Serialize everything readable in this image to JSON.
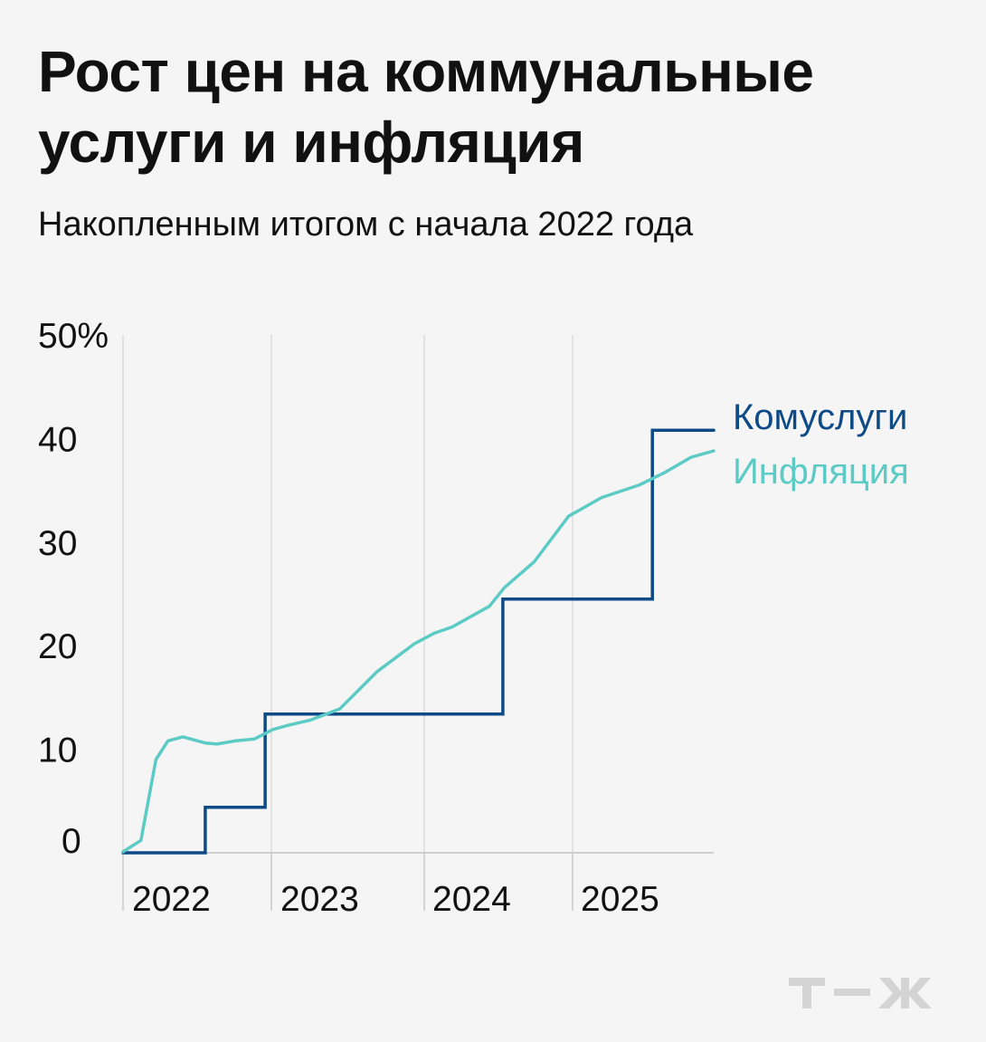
{
  "header": {
    "title": "Рост цен на коммунальные услуги и инфляция",
    "subtitle": "Накопленным итогом с начала 2022 года"
  },
  "brand": {
    "logo": "т—ж",
    "logo_color": "#d4d4d4"
  },
  "chart_data": {
    "type": "line",
    "title": "Рост цен на коммунальные услуги и инфляция",
    "subtitle": "Накопленным итогом с начала 2022 года",
    "xlabel": "",
    "ylabel": "",
    "x_ticks": [
      "2022",
      "2023",
      "2024",
      "2025"
    ],
    "y_ticks": [
      "50%",
      "40",
      "30",
      "20",
      "10",
      "0"
    ],
    "y_tick_values": [
      50,
      40,
      30,
      20,
      10,
      0
    ],
    "ylim": [
      0,
      50
    ],
    "xlim": [
      2022.0,
      2025.95
    ],
    "grid": "vertical",
    "legend": "right, inline",
    "series": [
      {
        "name": "Комуслуги",
        "color": "#0e4a86",
        "step": true,
        "points": [
          [
            2022.0,
            0
          ],
          [
            2022.55,
            0
          ],
          [
            2022.55,
            4.4
          ],
          [
            2022.95,
            4.4
          ],
          [
            2022.95,
            13.4
          ],
          [
            2024.54,
            13.4
          ],
          [
            2024.54,
            24.5
          ],
          [
            2025.54,
            24.5
          ],
          [
            2025.54,
            40.8
          ],
          [
            2025.95,
            40.8
          ]
        ]
      },
      {
        "name": "Инфляция",
        "color": "#5ccbc5",
        "step": false,
        "points": [
          [
            2022.0,
            0.1
          ],
          [
            2022.12,
            1.2
          ],
          [
            2022.22,
            9.0
          ],
          [
            2022.3,
            10.8
          ],
          [
            2022.4,
            11.2
          ],
          [
            2022.55,
            10.6
          ],
          [
            2022.63,
            10.5
          ],
          [
            2022.75,
            10.8
          ],
          [
            2022.88,
            11.0
          ],
          [
            2023.0,
            11.9
          ],
          [
            2023.1,
            12.3
          ],
          [
            2023.25,
            12.8
          ],
          [
            2023.45,
            13.9
          ],
          [
            2023.7,
            17.5
          ],
          [
            2023.95,
            20.2
          ],
          [
            2024.08,
            21.2
          ],
          [
            2024.2,
            21.8
          ],
          [
            2024.45,
            23.8
          ],
          [
            2024.55,
            25.6
          ],
          [
            2024.75,
            28.1
          ],
          [
            2024.98,
            32.5
          ],
          [
            2025.2,
            34.3
          ],
          [
            2025.45,
            35.5
          ],
          [
            2025.62,
            36.7
          ],
          [
            2025.8,
            38.2
          ],
          [
            2025.95,
            38.8
          ]
        ]
      }
    ]
  }
}
